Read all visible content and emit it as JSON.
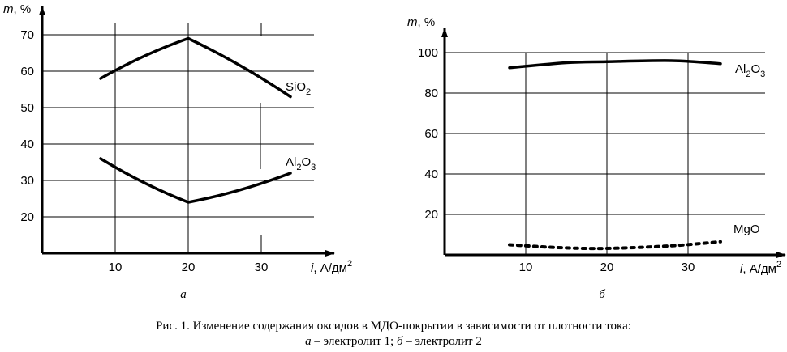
{
  "chart_data": [
    {
      "type": "line",
      "panel_label": "а",
      "ylabel": "m, %",
      "xlabel": "i, А/дм²",
      "x_ticks": [
        10,
        20,
        30
      ],
      "y_ticks": [
        20,
        30,
        40,
        50,
        60,
        70
      ],
      "xlim": [
        0,
        40
      ],
      "ylim": [
        10,
        77
      ],
      "grid": true,
      "series": [
        {
          "name": "SiO₂",
          "x": [
            8,
            20,
            34
          ],
          "y": [
            58,
            69,
            53
          ]
        },
        {
          "name": "Al₂O₃",
          "x": [
            8,
            20,
            34
          ],
          "y": [
            36,
            24,
            32
          ]
        }
      ]
    },
    {
      "type": "line",
      "panel_label": "б",
      "ylabel": "m, %",
      "xlabel": "i, А/дм²",
      "x_ticks": [
        10,
        20,
        30
      ],
      "y_ticks": [
        20,
        40,
        60,
        80,
        100
      ],
      "xlim": [
        0,
        40
      ],
      "ylim": [
        0,
        113
      ],
      "grid": true,
      "series": [
        {
          "name": "Al₂O₃",
          "x": [
            8,
            15,
            20,
            28,
            34
          ],
          "y": [
            92.5,
            95,
            95.5,
            96,
            94.5
          ],
          "style": "solid"
        },
        {
          "name": "MgO",
          "x": [
            8,
            14,
            20,
            28,
            34
          ],
          "y": [
            5,
            3.6,
            3.2,
            4.5,
            6.5
          ],
          "style": "dotted"
        }
      ]
    }
  ],
  "caption": {
    "line1": "Рис. 1. Изменение содержания оксидов в МДО-покрытии в зависимости от плотности тока:",
    "line2": "а – электролит 1; б – электролит 2"
  }
}
